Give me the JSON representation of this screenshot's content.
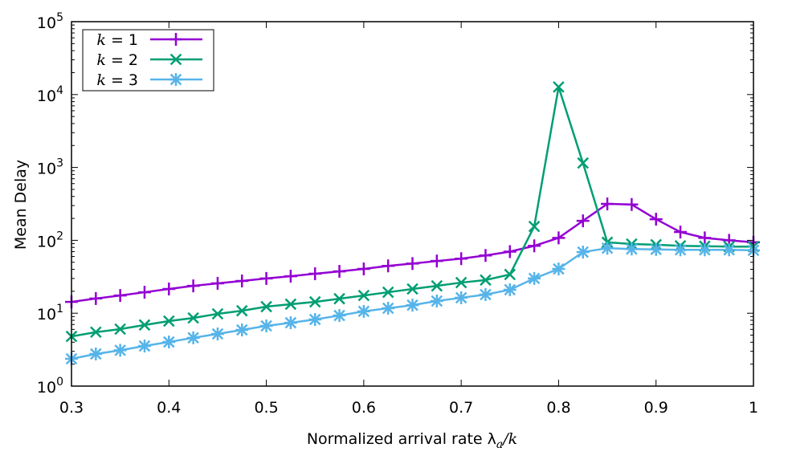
{
  "chart_data": {
    "type": "line",
    "xlabel": "Normalized arrival rate λ",
    "xlabel_sub": "a",
    "xlabel_suffix": "/k",
    "ylabel": "Mean Delay",
    "xlim": [
      0.3,
      1.0
    ],
    "ylim": [
      1,
      100000
    ],
    "yscale": "log",
    "grid": false,
    "legend_position": "top-left",
    "x_ticks": [
      "0.3",
      "0.4",
      "0.5",
      "0.6",
      "0.7",
      "0.8",
      "0.9",
      "1"
    ],
    "y_ticks": [
      {
        "base": "10",
        "exp": "0"
      },
      {
        "base": "10",
        "exp": "1"
      },
      {
        "base": "10",
        "exp": "2"
      },
      {
        "base": "10",
        "exp": "3"
      },
      {
        "base": "10",
        "exp": "4"
      },
      {
        "base": "10",
        "exp": "5"
      }
    ],
    "x": [
      0.3,
      0.325,
      0.35,
      0.375,
      0.4,
      0.425,
      0.45,
      0.475,
      0.5,
      0.525,
      0.55,
      0.575,
      0.6,
      0.625,
      0.65,
      0.675,
      0.7,
      0.725,
      0.75,
      0.775,
      0.8,
      0.825,
      0.85,
      0.875,
      0.9,
      0.925,
      0.95,
      0.975,
      1.0
    ],
    "series": [
      {
        "name_var": "k",
        "name_rest": " = 1",
        "color": "#9400d3",
        "marker": "plus",
        "values": [
          14.3,
          15.9,
          17.5,
          19.4,
          21.5,
          23.7,
          25.7,
          27.7,
          30,
          32.2,
          34.8,
          37.5,
          40.5,
          44.6,
          48,
          52,
          56,
          62,
          70,
          84,
          108,
          185,
          316,
          310,
          195,
          130,
          108,
          100,
          94
        ]
      },
      {
        "name_var": "k",
        "name_rest": " = 2",
        "color": "#009e73",
        "marker": "cross",
        "values": [
          4.8,
          5.5,
          6.05,
          6.9,
          7.8,
          8.6,
          9.8,
          10.8,
          12.3,
          13.3,
          14.3,
          15.8,
          17.5,
          19.4,
          21.5,
          23.7,
          26.3,
          28.5,
          34,
          155,
          12700,
          1150,
          94,
          89,
          87,
          84,
          83,
          82,
          82
        ]
      },
      {
        "name_var": "k",
        "name_rest": " = 3",
        "color": "#56b4e9",
        "marker": "star",
        "values": [
          2.37,
          2.76,
          3.1,
          3.55,
          4.03,
          4.6,
          5.2,
          5.9,
          6.7,
          7.4,
          8.2,
          9.3,
          10.6,
          11.7,
          12.9,
          14.7,
          16.3,
          18.0,
          21,
          30,
          40.5,
          69,
          78,
          76,
          75,
          74,
          74,
          74,
          73
        ]
      }
    ]
  }
}
